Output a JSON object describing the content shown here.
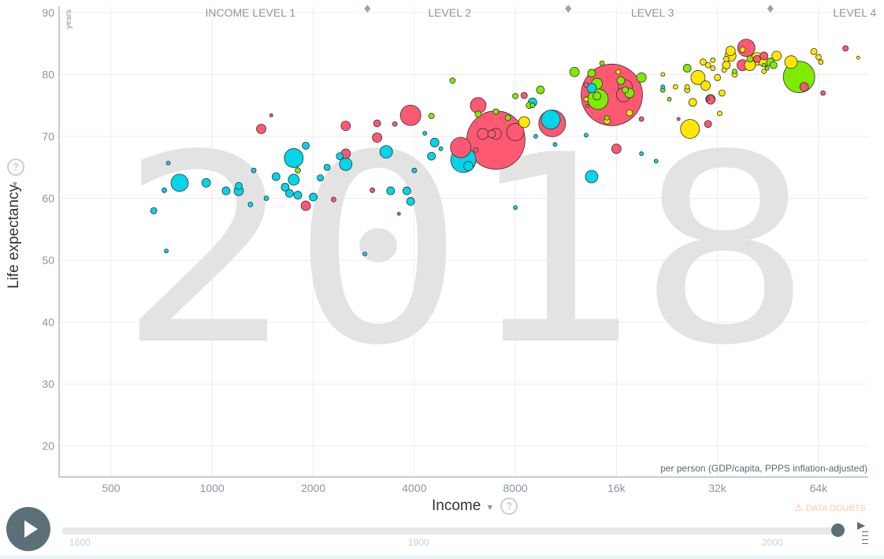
{
  "chart_data": {
    "type": "scatter",
    "title": "",
    "year_watermark": "2018",
    "xlabel": "Income",
    "x_unit_note": "per person (GDP/capita, PPPS inflation-adjusted)",
    "ylabel": "Life expectancy",
    "y_unit_note": "years",
    "x_scale": "log",
    "x_ticks": [
      500,
      1000,
      2000,
      4000,
      8000,
      16000,
      32000,
      64000
    ],
    "x_tick_labels": [
      "500",
      "1000",
      "2000",
      "4000",
      "8000",
      "16k",
      "32k",
      "64k"
    ],
    "xlim": [
      350,
      90000
    ],
    "y_ticks": [
      20,
      30,
      40,
      50,
      60,
      70,
      80,
      90
    ],
    "ylim": [
      15,
      91
    ],
    "grid": true,
    "income_levels": [
      {
        "label": "INCOME LEVEL 1",
        "center": 1300
      },
      {
        "label": "LEVEL 2",
        "center": 5100
      },
      {
        "label": "LEVEL 3",
        "center": 20500
      },
      {
        "label": "LEVEL 4",
        "center": 82000
      }
    ],
    "income_level_boundaries": [
      2900,
      11500,
      46000
    ],
    "series": [
      {
        "color": "#ff5872",
        "points": [
          [
            7000,
            69.4,
            37
          ],
          [
            15500,
            76.7,
            39
          ],
          [
            10300,
            72.1,
            17
          ],
          [
            3900,
            73.4,
            13
          ],
          [
            5500,
            68.2,
            13
          ],
          [
            8000,
            70.7,
            11
          ],
          [
            6200,
            75.0,
            10
          ],
          [
            39000,
            84.3,
            11
          ],
          [
            17000,
            78.0,
            9
          ],
          [
            16800,
            76.7,
            9
          ],
          [
            2500,
            71.7,
            6
          ],
          [
            3100,
            72.1,
            4.5
          ],
          [
            1400,
            71.2,
            6
          ],
          [
            1900,
            58.8,
            6
          ],
          [
            2500,
            67.2,
            6
          ],
          [
            3100,
            69.8,
            6
          ],
          [
            16000,
            68.0,
            6
          ],
          [
            38000,
            81.5,
            7
          ],
          [
            7000,
            70.4,
            7
          ],
          [
            6400,
            70.4,
            7
          ],
          [
            6800,
            70.4,
            5
          ],
          [
            58000,
            78.0,
            5.5
          ],
          [
            44000,
            83.0,
            5
          ],
          [
            42000,
            82.5,
            4.5
          ],
          [
            30000,
            72.0,
            4.5
          ],
          [
            30500,
            75.9,
            5.5
          ],
          [
            8500,
            76.6,
            4
          ],
          [
            19000,
            72.8,
            3
          ],
          [
            13000,
            78.3,
            3
          ],
          [
            3500,
            72.0,
            3
          ],
          [
            2300,
            59.8,
            3
          ],
          [
            3000,
            61.3,
            3
          ],
          [
            1500,
            73.4,
            2
          ],
          [
            77000,
            84.2,
            3.5
          ],
          [
            66000,
            77.0,
            3
          ],
          [
            6100,
            67.8,
            3
          ],
          [
            3600,
            57.5,
            2
          ],
          [
            13100,
            74.9,
            2
          ],
          [
            30000,
            76.0,
            2
          ],
          [
            24500,
            72.8,
            2
          ]
        ]
      },
      {
        "color": "#00d5e9",
        "points": [
          [
            5600,
            66.2,
            16
          ],
          [
            10200,
            72.7,
            12
          ],
          [
            1750,
            66.5,
            12
          ],
          [
            800,
            62.5,
            11
          ],
          [
            13500,
            63.5,
            8
          ],
          [
            2500,
            65.5,
            8
          ],
          [
            1750,
            63.0,
            7
          ],
          [
            3300,
            67.5,
            8
          ],
          [
            5800,
            65.2,
            6
          ],
          [
            13500,
            77.8,
            6
          ],
          [
            9000,
            75.5,
            5.5
          ],
          [
            4600,
            69.0,
            5.5
          ],
          [
            4500,
            66.8,
            5
          ],
          [
            1200,
            61.2,
            6
          ],
          [
            1100,
            61.2,
            5
          ],
          [
            1550,
            63.5,
            5
          ],
          [
            1650,
            61.8,
            5
          ],
          [
            1700,
            60.8,
            5
          ],
          [
            1800,
            60.5,
            5
          ],
          [
            2000,
            60.2,
            5
          ],
          [
            3800,
            61.2,
            5
          ],
          [
            3900,
            59.5,
            5
          ],
          [
            3400,
            61.2,
            5
          ],
          [
            1900,
            68.5,
            4.5
          ],
          [
            2400,
            66.8,
            4.5
          ],
          [
            960,
            62.5,
            5.5
          ],
          [
            1200,
            62.0,
            4.5
          ],
          [
            2100,
            63.3,
            4
          ],
          [
            2200,
            65.0,
            4
          ],
          [
            670,
            58.0,
            4
          ],
          [
            1330,
            64.5,
            3
          ],
          [
            1450,
            60.0,
            3
          ],
          [
            720,
            61.3,
            3
          ],
          [
            740,
            65.7,
            2.5
          ],
          [
            730,
            51.5,
            2.5
          ],
          [
            1300,
            59.0,
            3
          ],
          [
            2850,
            51.0,
            2.5
          ],
          [
            8000,
            58.5,
            2.5
          ],
          [
            4000,
            64.5,
            3
          ],
          [
            4800,
            68.0,
            2.5
          ],
          [
            4300,
            70.5,
            2.5
          ],
          [
            19000,
            67.2,
            2.5
          ],
          [
            21000,
            66.0,
            2.5
          ],
          [
            13000,
            70.2,
            2.5
          ],
          [
            9200,
            70.0,
            2.5
          ],
          [
            10500,
            68.7,
            2.5
          ],
          [
            22000,
            78.0,
            2.5
          ]
        ]
      },
      {
        "color": "#7feb00",
        "points": [
          [
            56000,
            79.6,
            20
          ],
          [
            14100,
            76.0,
            13
          ],
          [
            14000,
            78.5,
            7
          ],
          [
            16500,
            79.0,
            5
          ],
          [
            19000,
            79.5,
            6
          ],
          [
            13500,
            80.2,
            5
          ],
          [
            17500,
            77.0,
            6
          ],
          [
            9500,
            77.5,
            5
          ],
          [
            12000,
            80.4,
            6
          ],
          [
            26000,
            81.0,
            5
          ],
          [
            46000,
            82.0,
            5
          ],
          [
            47000,
            81.5,
            4.5
          ],
          [
            14000,
            76.5,
            5
          ],
          [
            8800,
            75.0,
            4
          ],
          [
            6200,
            73.6,
            4
          ],
          [
            5200,
            79.0,
            3.5
          ],
          [
            4500,
            73.3,
            3.5
          ],
          [
            7000,
            74.0,
            3.5
          ],
          [
            7600,
            73.0,
            3.5
          ],
          [
            1800,
            64.5,
            3.5
          ],
          [
            8000,
            76.5,
            3.5
          ],
          [
            15000,
            73.0,
            3
          ],
          [
            14500,
            81.8,
            3
          ],
          [
            22000,
            77.5,
            3
          ],
          [
            17000,
            77.5,
            4
          ],
          [
            40000,
            82.5,
            4
          ],
          [
            9000,
            75.0,
            3
          ],
          [
            23000,
            76.0,
            2.5
          ],
          [
            44000,
            81.5,
            2.5
          ],
          [
            45000,
            81.0,
            2.5
          ],
          [
            36000,
            80.5,
            3
          ]
        ]
      },
      {
        "color": "#ffe700",
        "points": [
          [
            26500,
            71.2,
            12
          ],
          [
            53000,
            82.0,
            8
          ],
          [
            42000,
            82.5,
            8
          ],
          [
            40000,
            81.5,
            7
          ],
          [
            35000,
            83.0,
            7
          ],
          [
            34000,
            81.5,
            5
          ],
          [
            48000,
            83.0,
            6
          ],
          [
            44000,
            82.0,
            6
          ],
          [
            35000,
            83.8,
            6
          ],
          [
            28000,
            79.5,
            9
          ],
          [
            29500,
            78.2,
            6
          ],
          [
            30500,
            76.0,
            6
          ],
          [
            27000,
            75.5,
            5
          ],
          [
            32000,
            79.5,
            4
          ],
          [
            33000,
            77.0,
            4
          ],
          [
            26000,
            77.5,
            3.5
          ],
          [
            29000,
            82.0,
            4
          ],
          [
            30000,
            81.5,
            3.5
          ],
          [
            31000,
            81.0,
            3
          ],
          [
            32500,
            73.7,
            3
          ],
          [
            34000,
            82.5,
            3.5
          ],
          [
            36000,
            80.0,
            3.5
          ],
          [
            62000,
            83.7,
            4
          ],
          [
            64000,
            82.8,
            3.5
          ],
          [
            65000,
            82.0,
            3
          ],
          [
            26000,
            78.0,
            3
          ],
          [
            24000,
            78.0,
            3
          ],
          [
            8500,
            72.3,
            7
          ],
          [
            17500,
            73.8,
            4
          ],
          [
            15000,
            72.5,
            4
          ],
          [
            13000,
            76.0,
            3
          ],
          [
            31000,
            82.3,
            3
          ],
          [
            33500,
            80.7,
            3
          ],
          [
            16200,
            80.4,
            3
          ],
          [
            84000,
            82.7,
            2
          ],
          [
            38000,
            84.0,
            3.5
          ],
          [
            44000,
            80.5,
            3
          ],
          [
            22000,
            80.0,
            2.5
          ]
        ]
      }
    ]
  },
  "axis": {
    "ylabel": "Life expectancy",
    "y_unit": "years",
    "xlabel": "Income",
    "x_unit": "per person (GDP/capita, PPPS inflation-adjusted)"
  },
  "controls": {
    "data_doubts": "DATA DOUBTS",
    "timeline_labels": [
      "1800",
      "1900",
      "2000"
    ],
    "play_icon": "play-icon",
    "help_icon": "question-circle-icon",
    "warning_icon": "warning-triangle-icon",
    "current_year": "2018"
  }
}
